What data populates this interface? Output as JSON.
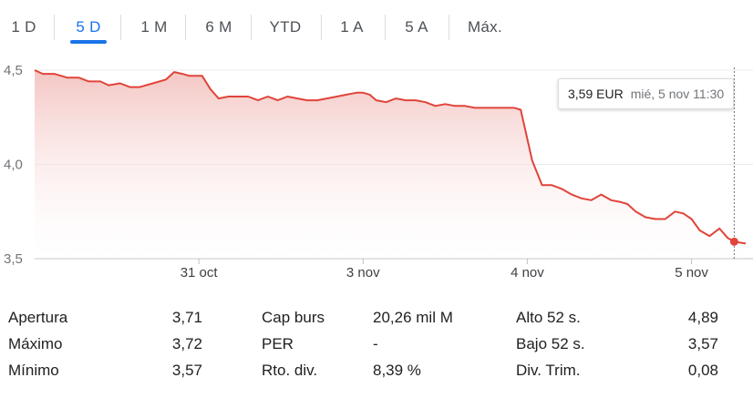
{
  "ranges": [
    "1 D",
    "5 D",
    "1 M",
    "6 M",
    "YTD",
    "1 A",
    "5 A",
    "Máx."
  ],
  "active_range": "5 D",
  "tooltip": {
    "price": "3,59 EUR",
    "date": "mié, 5 nov 11:30"
  },
  "colors": {
    "line": "#e0443a",
    "fill_top": "#f3c3c0",
    "accent": "#1a73e8"
  },
  "chart_data": {
    "type": "area",
    "title": "",
    "xlabel": "",
    "ylabel": "",
    "y_ticks": [
      {
        "value": 4.5,
        "label": "4,5"
      },
      {
        "value": 4.0,
        "label": "4,0"
      },
      {
        "value": 3.5,
        "label": "3,5"
      }
    ],
    "ylim": [
      3.5,
      4.55
    ],
    "xlim": [
      0,
      4.33
    ],
    "x_ticks": [
      {
        "value": 1,
        "label": "31 oct"
      },
      {
        "value": 2,
        "label": "3 nov"
      },
      {
        "value": 3,
        "label": "4 nov"
      },
      {
        "value": 4,
        "label": "5 nov"
      }
    ],
    "x_axis_note": "x in trading days since first session (each label marks the start of that session)",
    "grid": true,
    "series": [
      {
        "values": [
          [
            0.0,
            4.5
          ],
          [
            0.05,
            4.48
          ],
          [
            0.12,
            4.48
          ],
          [
            0.2,
            4.46
          ],
          [
            0.27,
            4.46
          ],
          [
            0.33,
            4.44
          ],
          [
            0.4,
            4.44
          ],
          [
            0.45,
            4.42
          ],
          [
            0.52,
            4.43
          ],
          [
            0.58,
            4.41
          ],
          [
            0.64,
            4.41
          ],
          [
            0.72,
            4.43
          ],
          [
            0.8,
            4.45
          ],
          [
            0.85,
            4.49
          ],
          [
            0.9,
            4.48
          ],
          [
            0.94,
            4.47
          ],
          [
            1.02,
            4.47
          ],
          [
            1.07,
            4.4
          ],
          [
            1.12,
            4.35
          ],
          [
            1.18,
            4.36
          ],
          [
            1.25,
            4.36
          ],
          [
            1.3,
            4.36
          ],
          [
            1.36,
            4.34
          ],
          [
            1.42,
            4.36
          ],
          [
            1.48,
            4.34
          ],
          [
            1.54,
            4.36
          ],
          [
            1.6,
            4.35
          ],
          [
            1.66,
            4.34
          ],
          [
            1.72,
            4.34
          ],
          [
            1.78,
            4.35
          ],
          [
            1.84,
            4.36
          ],
          [
            1.9,
            4.37
          ],
          [
            1.96,
            4.38
          ],
          [
            2.0,
            4.38
          ],
          [
            2.04,
            4.37
          ],
          [
            2.08,
            4.34
          ],
          [
            2.14,
            4.33
          ],
          [
            2.2,
            4.35
          ],
          [
            2.26,
            4.34
          ],
          [
            2.32,
            4.34
          ],
          [
            2.38,
            4.33
          ],
          [
            2.44,
            4.31
          ],
          [
            2.5,
            4.32
          ],
          [
            2.56,
            4.31
          ],
          [
            2.62,
            4.31
          ],
          [
            2.68,
            4.3
          ],
          [
            2.74,
            4.3
          ],
          [
            2.8,
            4.3
          ],
          [
            2.86,
            4.3
          ],
          [
            2.92,
            4.3
          ],
          [
            2.96,
            4.29
          ],
          [
            3.03,
            4.02
          ],
          [
            3.09,
            3.89
          ],
          [
            3.15,
            3.89
          ],
          [
            3.21,
            3.87
          ],
          [
            3.27,
            3.84
          ],
          [
            3.33,
            3.82
          ],
          [
            3.39,
            3.81
          ],
          [
            3.45,
            3.84
          ],
          [
            3.51,
            3.81
          ],
          [
            3.57,
            3.8
          ],
          [
            3.61,
            3.79
          ],
          [
            3.66,
            3.75
          ],
          [
            3.72,
            3.72
          ],
          [
            3.78,
            3.71
          ],
          [
            3.84,
            3.71
          ],
          [
            3.9,
            3.75
          ],
          [
            3.95,
            3.74
          ],
          [
            4.0,
            3.71
          ],
          [
            4.05,
            3.65
          ],
          [
            4.11,
            3.62
          ],
          [
            4.17,
            3.66
          ],
          [
            4.22,
            3.61
          ],
          [
            4.26,
            3.59
          ],
          [
            4.33,
            3.58
          ]
        ]
      }
    ],
    "highlight_point": {
      "x": 4.26,
      "y": 3.59
    }
  },
  "stats": [
    {
      "label": "Apertura",
      "value": "3,71",
      "label2": "Cap burs",
      "value2": "20,26 mil M",
      "label3": "Alto 52 s.",
      "value3": "4,89"
    },
    {
      "label": "Máximo",
      "value": "3,72",
      "label2": "PER",
      "value2": "-",
      "label3": "Bajo 52 s.",
      "value3": "3,57"
    },
    {
      "label": "Mínimo",
      "value": "3,57",
      "label2": "Rto. div.",
      "value2": "8,39 %",
      "label3": "Div. Trim.",
      "value3": "0,08"
    }
  ]
}
